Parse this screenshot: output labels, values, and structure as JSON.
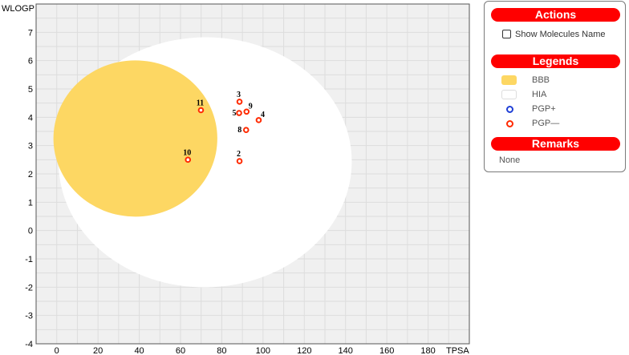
{
  "chart_data": {
    "type": "scatter",
    "xlabel": "TPSA",
    "ylabel": "WLOGP",
    "xlim": [
      -10,
      200
    ],
    "ylim": [
      -4,
      8
    ],
    "x_ticks": [
      0,
      20,
      40,
      60,
      80,
      100,
      120,
      140,
      160,
      180
    ],
    "y_ticks": [
      -4,
      -3,
      -2,
      -1,
      0,
      1,
      2,
      3,
      4,
      5,
      6,
      7
    ],
    "grid": true,
    "regions": [
      {
        "name": "HIA",
        "shape": "ellipse",
        "cx": 71.97,
        "cy": 2.41,
        "rx": 142.08,
        "ry": 8.83,
        "angle_deg": -1.03,
        "color": "#ffffff"
      },
      {
        "name": "BBB",
        "shape": "ellipse",
        "cx": 38.12,
        "cy": 3.25,
        "rx": 79.44,
        "ry": 5.52,
        "angle_deg": -0.24,
        "color": "#fdd763"
      }
    ],
    "points": [
      {
        "label": "2",
        "x": 88.6,
        "y": 2.45,
        "class": "PGP—"
      },
      {
        "label": "3",
        "x": 88.6,
        "y": 4.55,
        "class": "PGP—"
      },
      {
        "label": "4",
        "x": 97.9,
        "y": 3.9,
        "class": "PGP—"
      },
      {
        "label": "5",
        "x": 88.4,
        "y": 4.15,
        "class": "PGP—"
      },
      {
        "label": "8",
        "x": 91.8,
        "y": 3.55,
        "class": "PGP—"
      },
      {
        "label": "9",
        "x": 92.0,
        "y": 4.2,
        "class": "PGP—"
      },
      {
        "label": "10",
        "x": 63.6,
        "y": 2.5,
        "class": "PGP—"
      },
      {
        "label": "11",
        "x": 69.9,
        "y": 4.25,
        "class": "PGP—"
      }
    ]
  },
  "panel": {
    "actions_title": "Actions",
    "show_names_label": "Show Molecules Name",
    "legends_title": "Legends",
    "legend": [
      {
        "label": "BBB",
        "kind": "swatch",
        "color": "#fdd763"
      },
      {
        "label": "HIA",
        "kind": "swatch",
        "color": "#ffffff"
      },
      {
        "label": "PGP+",
        "kind": "ring",
        "color": "#1f3fd6"
      },
      {
        "label": "PGP—",
        "kind": "ring",
        "color": "#ff2a00"
      }
    ],
    "remarks_title": "Remarks",
    "remarks_text": "None"
  },
  "colors": {
    "plot_bg": "#f0f0f0",
    "grid": "#dddddd",
    "pgp_negative": "#ff2a00",
    "pgp_positive": "#1f3fd6",
    "header": "#ff0000"
  }
}
